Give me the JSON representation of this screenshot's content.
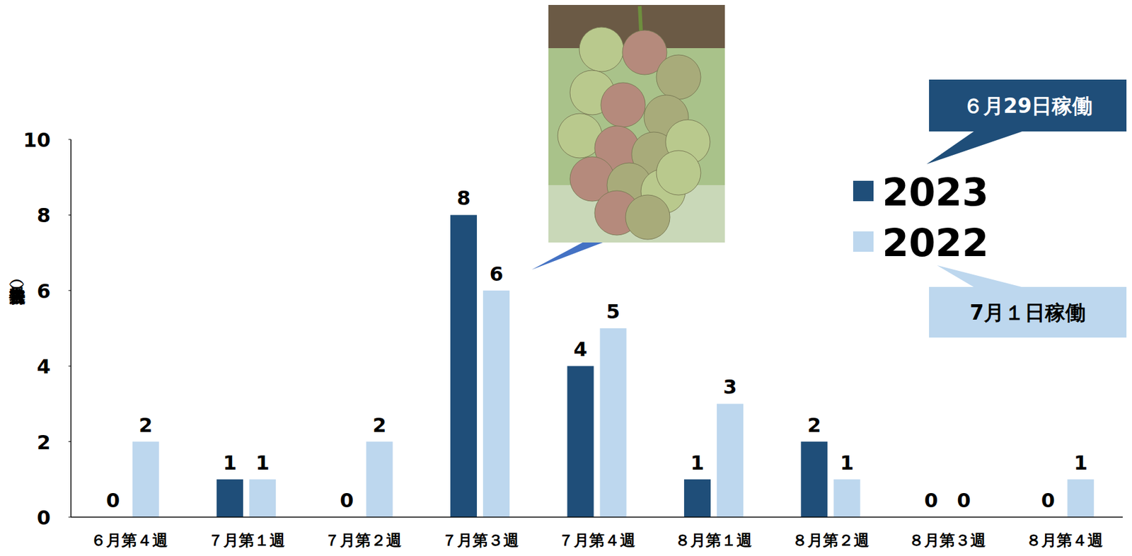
{
  "chart_data": {
    "type": "bar",
    "y_label": "被害果数（房）",
    "categories": [
      "６月第４週",
      "７月第１週",
      "７月第２週",
      "７月第３週",
      "７月第４週",
      "８月第１週",
      "８月第２週",
      "８月第３週",
      "８月第４週"
    ],
    "series": [
      {
        "name": "2023",
        "color": "#1f4e79",
        "values": [
          0,
          1,
          0,
          8,
          4,
          1,
          2,
          0,
          0
        ]
      },
      {
        "name": "2022",
        "color": "#bdd7ee",
        "values": [
          2,
          1,
          2,
          6,
          5,
          3,
          1,
          0,
          1
        ]
      }
    ],
    "annotations": [
      "６月29日稼働",
      "7月１日稼働"
    ],
    "ylim": [
      0,
      10
    ],
    "yticks": [
      0,
      2,
      4,
      6,
      8,
      10
    ],
    "grid": false,
    "legend": "right",
    "data_labels": true
  }
}
